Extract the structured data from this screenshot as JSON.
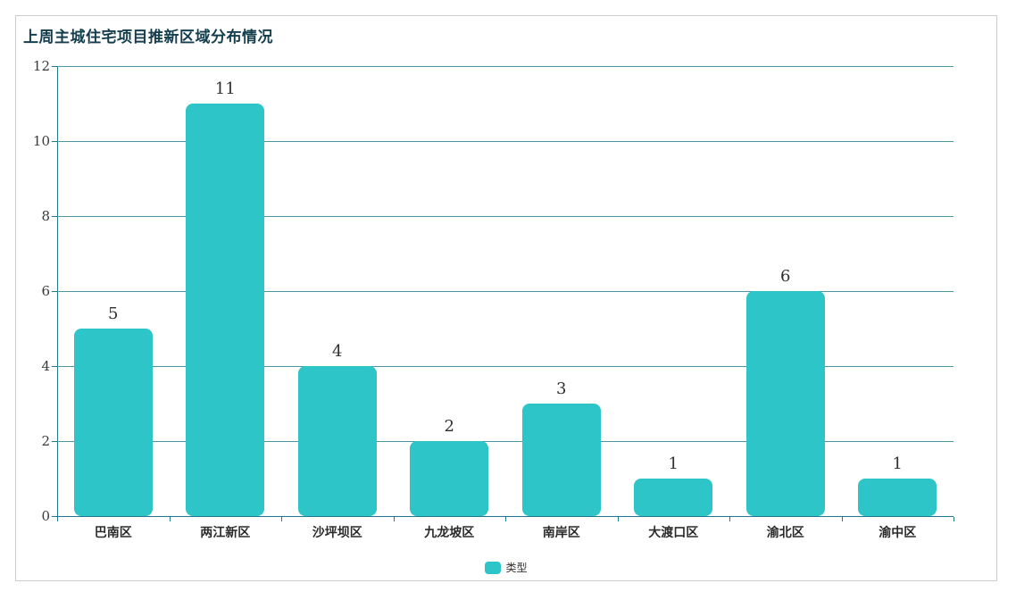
{
  "chart_data": {
    "type": "bar",
    "title": "上周主城住宅项目推新区域分布情况",
    "categories": [
      "巴南区",
      "两江新区",
      "沙坪坝区",
      "九龙坡区",
      "南岸区",
      "大渡口区",
      "渝北区",
      "渝中区"
    ],
    "values": [
      5,
      11,
      4,
      2,
      3,
      1,
      6,
      1
    ],
    "series_name": "类型",
    "xlabel": "",
    "ylabel": "",
    "ylim": [
      0,
      12
    ],
    "y_ticks": [
      0,
      2,
      4,
      6,
      8,
      10,
      12
    ],
    "grid": true,
    "legend_position": "bottom",
    "bar_labels_shown": true
  },
  "legend": {
    "label": "类型"
  },
  "colors": {
    "bar": "#2ec5c8",
    "grid_line": "#4d98a5",
    "axis_line": "#20788c",
    "title_text": "#143e4e",
    "label_text": "#2b2b2b",
    "card_border": "#cccccc"
  }
}
